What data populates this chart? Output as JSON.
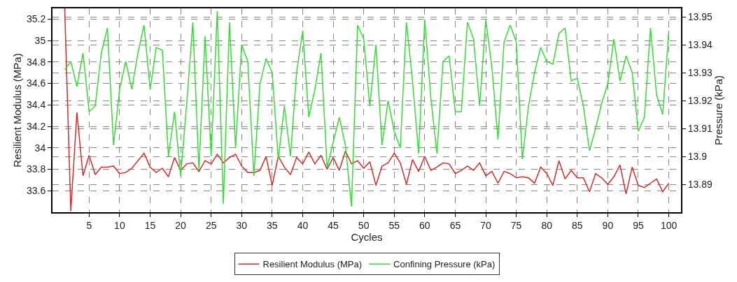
{
  "chart_data": {
    "type": "line",
    "xlabel": "Cycles",
    "ylabel": "Resilient Modulus (MPa)",
    "y2label": "Pressure (kPa)",
    "x": [
      1,
      2,
      3,
      4,
      5,
      6,
      7,
      8,
      9,
      10,
      11,
      12,
      13,
      14,
      15,
      16,
      17,
      18,
      19,
      20,
      21,
      22,
      23,
      24,
      25,
      26,
      27,
      28,
      29,
      30,
      31,
      32,
      33,
      34,
      35,
      36,
      37,
      38,
      39,
      40,
      41,
      42,
      43,
      44,
      45,
      46,
      47,
      48,
      49,
      50,
      51,
      52,
      53,
      54,
      55,
      56,
      57,
      58,
      59,
      60,
      61,
      62,
      63,
      64,
      65,
      66,
      67,
      68,
      69,
      70,
      71,
      72,
      73,
      74,
      75,
      76,
      77,
      78,
      79,
      80,
      81,
      82,
      83,
      84,
      85,
      86,
      87,
      88,
      89,
      90,
      91,
      92,
      93,
      94,
      95,
      96,
      97,
      98,
      99,
      100
    ],
    "series": [
      {
        "name": "Resilient Modulus (MPa)",
        "color": "#d42a2a",
        "values": [
          35.3,
          33.41,
          34.33,
          33.74,
          33.93,
          33.75,
          33.82,
          33.82,
          33.83,
          33.76,
          33.77,
          33.81,
          33.88,
          33.95,
          33.82,
          33.77,
          33.81,
          33.73,
          33.91,
          33.79,
          33.85,
          33.86,
          33.78,
          33.88,
          33.85,
          33.94,
          33.86,
          33.91,
          33.94,
          33.83,
          33.77,
          33.77,
          33.79,
          33.92,
          33.65,
          33.92,
          33.82,
          33.75,
          33.91,
          33.85,
          33.96,
          33.85,
          33.93,
          33.8,
          33.91,
          33.79,
          33.97,
          33.85,
          33.88,
          33.81,
          33.87,
          33.65,
          33.83,
          33.86,
          33.95,
          33.86,
          33.66,
          33.89,
          33.78,
          33.92,
          33.79,
          33.82,
          33.86,
          33.85,
          33.76,
          33.79,
          33.83,
          33.79,
          33.86,
          33.74,
          33.78,
          33.67,
          33.78,
          33.76,
          33.72,
          33.73,
          33.72,
          33.67,
          33.82,
          33.76,
          33.65,
          33.88,
          33.71,
          33.79,
          33.72,
          33.72,
          33.59,
          33.76,
          33.72,
          33.66,
          33.73,
          33.84,
          33.57,
          33.82,
          33.65,
          33.63,
          33.67,
          33.71,
          33.59,
          33.67
        ]
      },
      {
        "name": "Confining Pressure (kPa)",
        "color": "#33dd33",
        "axis": "y2",
        "values": [
          13.931,
          13.934,
          13.925,
          13.937,
          13.916,
          13.918,
          13.937,
          13.946,
          13.904,
          13.924,
          13.934,
          13.924,
          13.937,
          13.947,
          13.924,
          13.939,
          13.938,
          13.9,
          13.916,
          13.893,
          13.919,
          13.948,
          13.895,
          13.943,
          13.9,
          13.952,
          13.883,
          13.948,
          13.903,
          13.94,
          13.934,
          13.893,
          13.926,
          13.935,
          13.93,
          13.899,
          13.918,
          13.9,
          13.93,
          13.945,
          13.914,
          13.924,
          13.937,
          13.896,
          13.905,
          13.914,
          13.904,
          13.882,
          13.947,
          13.942,
          13.918,
          13.94,
          13.904,
          13.92,
          13.909,
          13.903,
          13.948,
          13.927,
          13.901,
          13.949,
          13.921,
          13.901,
          13.934,
          13.936,
          13.916,
          13.916,
          13.948,
          13.942,
          13.918,
          13.949,
          13.932,
          13.906,
          13.941,
          13.947,
          13.941,
          13.899,
          13.918,
          13.93,
          13.939,
          13.934,
          13.933,
          13.944,
          13.946,
          13.927,
          13.928,
          13.918,
          13.902,
          13.91,
          13.919,
          13.926,
          13.942,
          13.927,
          13.936,
          13.93,
          13.909,
          13.914,
          13.946,
          13.922,
          13.915,
          13.945
        ]
      }
    ],
    "xlim": [
      -1,
      102
    ],
    "xticks": [
      5,
      10,
      15,
      20,
      25,
      30,
      35,
      40,
      45,
      50,
      55,
      60,
      65,
      70,
      75,
      80,
      85,
      90,
      95,
      100
    ],
    "ylim": [
      33.4,
      35.3
    ],
    "yticks": [
      33.6,
      33.8,
      34,
      34.2,
      34.4,
      34.6,
      34.8,
      35,
      35.2
    ],
    "y2lim": [
      13.88,
      13.953
    ],
    "y2ticks": [
      13.89,
      13.9,
      13.91,
      13.92,
      13.93,
      13.94,
      13.95
    ],
    "grid": true,
    "legend": "bottom",
    "marker": "none",
    "line_style": "solid"
  }
}
